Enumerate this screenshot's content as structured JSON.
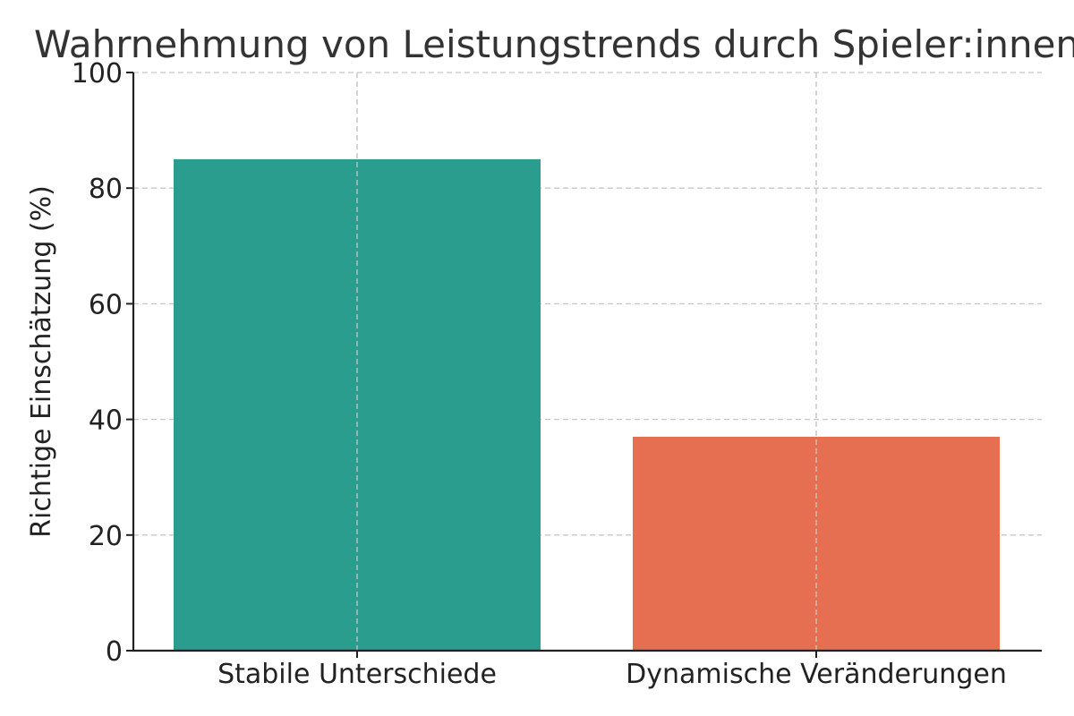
{
  "chart_data": {
    "type": "bar",
    "title": "Wahrnehmung von Leistungstrends durch Spieler:innen",
    "xlabel": "",
    "ylabel": "Richtige Einschätzung (%)",
    "categories": [
      "Stabile Unterschiede",
      "Dynamische Veränderungen"
    ],
    "values": [
      85,
      37
    ],
    "colors": [
      "#2a9d8f",
      "#e76f51"
    ],
    "ylim": [
      0,
      100
    ],
    "yticks": [
      "0",
      "20",
      "40",
      "60",
      "80",
      "100"
    ],
    "grid": true,
    "legend": "none"
  }
}
